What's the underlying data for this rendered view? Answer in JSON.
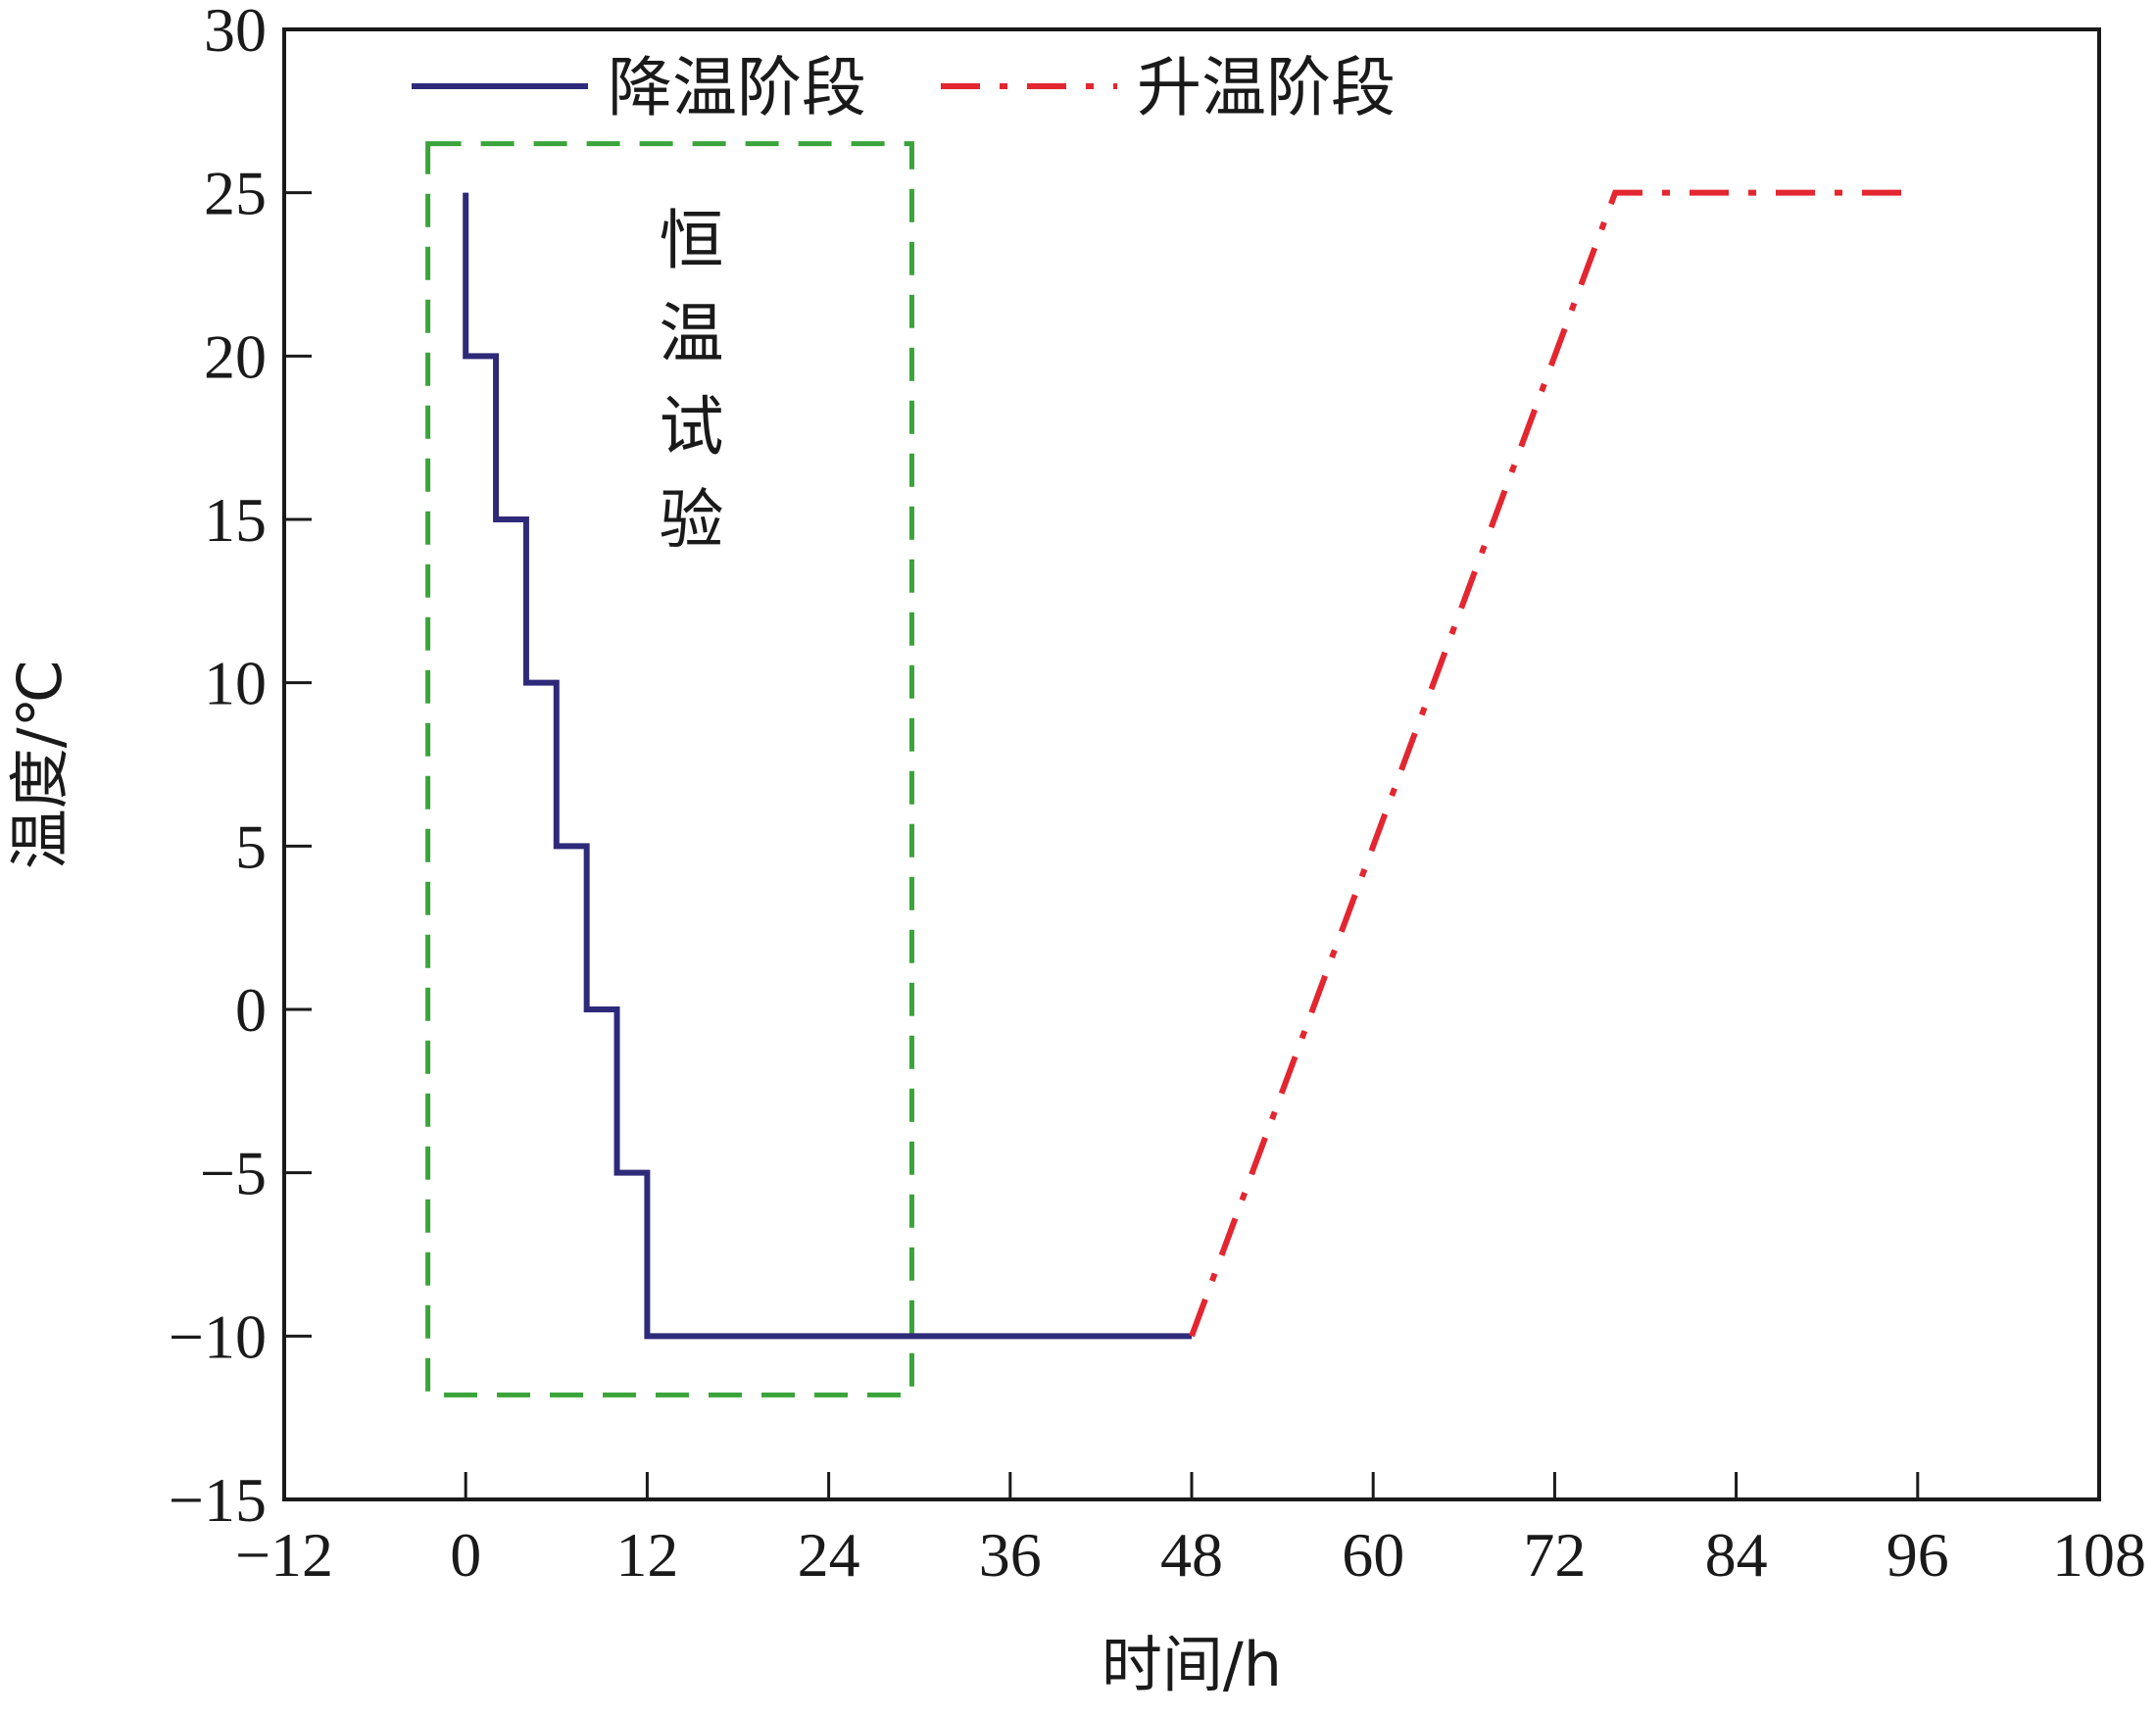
{
  "chart_data": {
    "type": "line",
    "title": "",
    "xlabel": "时间/h",
    "ylabel": "温度/℃",
    "xlim": [
      -12,
      108
    ],
    "ylim": [
      -15,
      30
    ],
    "xticks": [
      -12,
      0,
      12,
      24,
      36,
      48,
      60,
      72,
      84,
      96,
      108
    ],
    "yticks": [
      -15,
      -10,
      -5,
      0,
      5,
      10,
      15,
      20,
      25,
      30
    ],
    "xtick_labels": [
      "−12",
      "0",
      "12",
      "24",
      "36",
      "48",
      "60",
      "72",
      "84",
      "96",
      "108"
    ],
    "ytick_labels": [
      "−15",
      "−10",
      "−5",
      "0",
      "5",
      "10",
      "15",
      "20",
      "25",
      "30"
    ],
    "grid": false,
    "legend_position": "top-left",
    "series": [
      {
        "name": "降温阶段",
        "style": "solid",
        "color": "#2e2a7a",
        "x": [
          0,
          0,
          2,
          2,
          4,
          4,
          6,
          6,
          8,
          8,
          10,
          10,
          12,
          12,
          48
        ],
        "y": [
          25,
          20,
          20,
          15,
          15,
          10,
          10,
          5,
          5,
          0,
          0,
          -5,
          -5,
          -10,
          -10
        ]
      },
      {
        "name": "升温阶段",
        "style": "dash-dot",
        "color": "#e3262f",
        "x": [
          48,
          76,
          96
        ],
        "y": [
          -10,
          25,
          25
        ]
      }
    ],
    "annotations": [
      {
        "type": "dashed-box",
        "label": "恒温试验",
        "color": "#3aa43a",
        "x_range": [
          -2.5,
          29.5
        ],
        "y_range": [
          -11.8,
          26.5
        ]
      }
    ]
  }
}
